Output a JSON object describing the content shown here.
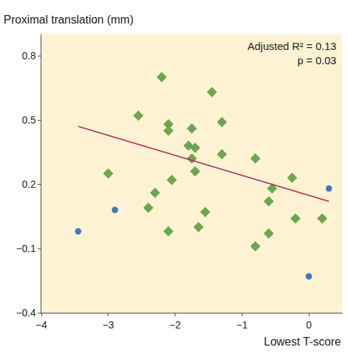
{
  "chart_data": {
    "type": "scatter",
    "x_label": "Lowest T-score",
    "y_label": "Proximal translation (mm)",
    "annotations": [
      "Adjusted R² = 0.13",
      "p = 0.03"
    ],
    "xlim": [
      -4,
      0.5
    ],
    "xticks": [
      -4,
      -3,
      -2,
      -1,
      0
    ],
    "ylim": [
      -0.4,
      0.9
    ],
    "yticks": [
      -0.4,
      -0.1,
      0.2,
      0.5,
      0.8
    ],
    "grid": false,
    "series": [
      {
        "color": "#6aa84f",
        "marker": "diamond",
        "x": [
          -2.55,
          -2.2,
          -1.45,
          -2.1,
          -2.1,
          -1.75,
          -1.3,
          -1.8,
          -1.7,
          -1.75,
          -1.3,
          -1.7,
          -2.05,
          -3.0,
          -2.3,
          -2.4,
          -2.1,
          -1.55,
          -1.65,
          -0.8,
          -0.55,
          -0.25,
          -0.6,
          -0.2,
          0.2,
          -0.6,
          -0.8
        ],
        "values": [
          0.52,
          0.7,
          0.63,
          0.48,
          0.45,
          0.46,
          0.49,
          0.38,
          0.37,
          0.32,
          0.34,
          0.26,
          0.22,
          0.25,
          0.16,
          0.09,
          -0.02,
          0.07,
          0.0,
          0.32,
          0.18,
          0.23,
          0.12,
          0.04,
          0.04,
          -0.03,
          -0.09
        ]
      },
      {
        "color": "#3d7bbf",
        "marker": "circle",
        "x": [
          -3.45,
          -2.9,
          0.3,
          0.0
        ],
        "values": [
          -0.02,
          0.08,
          0.18,
          -0.23
        ]
      }
    ],
    "trend": {
      "color": "#c2185b",
      "x": [
        -3.45,
        0.3
      ],
      "values": [
        0.47,
        0.12
      ]
    }
  }
}
